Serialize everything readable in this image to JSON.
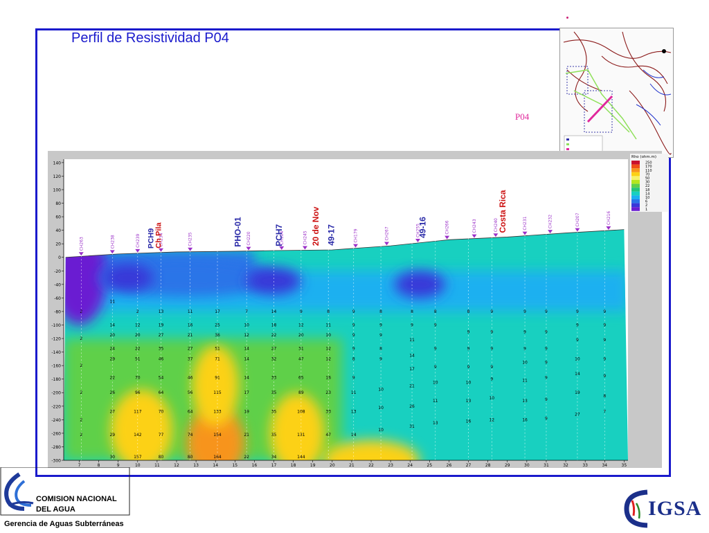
{
  "page": {
    "title": "Perfil de Resistividad P04",
    "profile_label": "P04",
    "institution": {
      "line1": "COMISION NACIONAL",
      "line2": "DEL  AGUA",
      "subtitle": "Gerencia de Aguas Subterráneas"
    },
    "cigsa_logo_text": "IGSA"
  },
  "colors": {
    "frame": "#1a1acc",
    "title": "#1a1acc",
    "profile_label": "#e0279b",
    "station_marker": "#9b30c8",
    "annotation_blue": "#2a2aa8",
    "annotation_red": "#cc1111"
  },
  "chart_data": {
    "type": "heatmap",
    "description": "Resistivity cross-section (isoline contour) along profile P04",
    "x_ticks": [
      7,
      8,
      9,
      10,
      11,
      12,
      13,
      14,
      15,
      16,
      17,
      18,
      19,
      20,
      21,
      22,
      23,
      24,
      25,
      26,
      27,
      28,
      29,
      30,
      31,
      32,
      33,
      34,
      35
    ],
    "y_ticks": [
      140,
      120,
      100,
      80,
      60,
      40,
      20,
      0,
      -20,
      -40,
      -60,
      -80,
      -100,
      -120,
      -140,
      -160,
      -180,
      -200,
      -220,
      -240,
      -260,
      -280,
      -300
    ],
    "xlim": [
      6.2,
      35.2
    ],
    "ylim": [
      -300,
      145
    ],
    "legend": {
      "title": "Rho (ohm.m)",
      "placement": "top-right",
      "levels": [
        {
          "value": "250",
          "color": "#c8102e"
        },
        {
          "value": "170",
          "color": "#f04f18"
        },
        {
          "value": "110",
          "color": "#f7941d"
        },
        {
          "value": "70",
          "color": "#fcd116"
        },
        {
          "value": "50",
          "color": "#f6f26b"
        },
        {
          "value": "30",
          "color": "#b5e61d"
        },
        {
          "value": "22",
          "color": "#5ed04a"
        },
        {
          "value": "18",
          "color": "#22c47a"
        },
        {
          "value": "14",
          "color": "#18d0c0"
        },
        {
          "value": "10",
          "color": "#1cb0f0"
        },
        {
          "value": "6",
          "color": "#2a74e8"
        },
        {
          "value": "2",
          "color": "#3838d8"
        },
        {
          "value": "1",
          "color": "#6a1fd2"
        }
      ]
    },
    "surface": [
      {
        "x": 6.3,
        "y": 0
      },
      {
        "x": 9,
        "y": 5
      },
      {
        "x": 12,
        "y": 8
      },
      {
        "x": 15,
        "y": 9
      },
      {
        "x": 17,
        "y": 10
      },
      {
        "x": 20,
        "y": 11
      },
      {
        "x": 23,
        "y": 17
      },
      {
        "x": 26,
        "y": 26
      },
      {
        "x": 29,
        "y": 30
      },
      {
        "x": 32,
        "y": 36
      },
      {
        "x": 35,
        "y": 41
      }
    ],
    "zones": [
      {
        "cx": 7.0,
        "cy": -30,
        "rx": 1.4,
        "ry": 70,
        "color": "#6a1fd2"
      },
      {
        "cx": 14.0,
        "cy": -275,
        "rx": 1.5,
        "ry": 55,
        "color": "#f7941d"
      },
      {
        "cx": 10.2,
        "cy": -255,
        "rx": 1.6,
        "ry": 60,
        "color": "#fcd116"
      },
      {
        "cx": 18.2,
        "cy": -260,
        "rx": 1.4,
        "ry": 60,
        "color": "#fcd116"
      },
      {
        "cx": 14.0,
        "cy": -190,
        "rx": 1.2,
        "ry": 60,
        "color": "#fcd116"
      },
      {
        "cx": 22.0,
        "cy": -300,
        "rx": 2.5,
        "ry": 30,
        "color": "#fcd116"
      },
      {
        "cx": 12.5,
        "cy": -30,
        "rx": 4.5,
        "ry": 28,
        "color": "#2a74e8"
      },
      {
        "cx": 17.0,
        "cy": -35,
        "rx": 1.4,
        "ry": 20,
        "color": "#3838d8"
      },
      {
        "cx": 24.5,
        "cy": -40,
        "rx": 1.3,
        "ry": 20,
        "color": "#3838d8"
      },
      {
        "cx": 9.5,
        "cy": -30,
        "rx": 1.3,
        "ry": 20,
        "color": "#3838d8"
      }
    ],
    "stations": [
      {
        "name": "CH263",
        "x": 7.1
      },
      {
        "name": "CH238",
        "x": 8.7
      },
      {
        "name": "CH239",
        "x": 10.0
      },
      {
        "name": "CH234",
        "x": 11.2
      },
      {
        "name": "CH235",
        "x": 12.7
      },
      {
        "name": "CH220",
        "x": 15.7
      },
      {
        "name": "CH104",
        "x": 17.4
      },
      {
        "name": "CH245",
        "x": 18.6
      },
      {
        "name": "CH179",
        "x": 21.2
      },
      {
        "name": "CH267",
        "x": 22.8
      },
      {
        "name": "CH255",
        "x": 24.4
      },
      {
        "name": "CH266",
        "x": 25.9
      },
      {
        "name": "CH243",
        "x": 27.3
      },
      {
        "name": "CH240",
        "x": 28.4
      },
      {
        "name": "CH231",
        "x": 29.9
      },
      {
        "name": "CH232",
        "x": 31.2
      },
      {
        "name": "CH207",
        "x": 32.6
      },
      {
        "name": "CH216",
        "x": 34.2
      }
    ],
    "annotations": [
      {
        "text": "PCH9",
        "x": 10.8,
        "color": "#2a2aa8",
        "size": 11
      },
      {
        "text": "Ch Pila",
        "x": 11.2,
        "color": "#cc1111",
        "size": 11
      },
      {
        "text": "PHO-01",
        "x": 15.3,
        "color": "#2a2aa8",
        "size": 12
      },
      {
        "text": "PCH7",
        "x": 17.4,
        "color": "#2a2aa8",
        "size": 12
      },
      {
        "text": "20 de Nov",
        "x": 19.3,
        "color": "#cc1111",
        "size": 12
      },
      {
        "text": "49-17",
        "x": 20.1,
        "color": "#2a2aa8",
        "size": 12
      },
      {
        "text": "49-16",
        "x": 24.8,
        "color": "#2a2aa8",
        "size": 12
      },
      {
        "text": "Costa Rica",
        "x": 28.9,
        "color": "#cc1111",
        "size": 12
      }
    ],
    "vertical_values": [
      {
        "x": 7.1,
        "values": [
          [
            -80,
            "2"
          ],
          [
            -120,
            "2"
          ],
          [
            -160,
            "2"
          ],
          [
            -200,
            "2"
          ],
          [
            -240,
            "2"
          ],
          [
            -262,
            "2"
          ]
        ]
      },
      {
        "x": 8.7,
        "values": [
          [
            -65,
            "11"
          ],
          [
            -100,
            "14"
          ],
          [
            -115,
            "20"
          ],
          [
            -135,
            "24"
          ],
          [
            -150,
            "29"
          ],
          [
            -178,
            "22"
          ],
          [
            -200,
            "26"
          ],
          [
            -228,
            "27"
          ],
          [
            -262,
            "29"
          ],
          [
            -295,
            "30"
          ]
        ]
      },
      {
        "x": 10.0,
        "values": [
          [
            -80,
            "2"
          ],
          [
            -100,
            "12"
          ],
          [
            -115,
            "20"
          ],
          [
            -135,
            "22"
          ],
          [
            -150,
            "51"
          ],
          [
            -178,
            "70"
          ],
          [
            -200,
            "96"
          ],
          [
            -228,
            "117"
          ],
          [
            -262,
            "142"
          ],
          [
            -295,
            "157"
          ]
        ]
      },
      {
        "x": 11.2,
        "values": [
          [
            -80,
            "13"
          ],
          [
            -100,
            "19"
          ],
          [
            -115,
            "27"
          ],
          [
            -135,
            "35"
          ],
          [
            -150,
            "46"
          ],
          [
            -178,
            "54"
          ],
          [
            -200,
            "64"
          ],
          [
            -228,
            "70"
          ],
          [
            -262,
            "77"
          ],
          [
            -295,
            "80"
          ]
        ]
      },
      {
        "x": 12.7,
        "values": [
          [
            -80,
            "11"
          ],
          [
            -100,
            "16"
          ],
          [
            -115,
            "21"
          ],
          [
            -135,
            "27"
          ],
          [
            -150,
            "37"
          ],
          [
            -178,
            "46"
          ],
          [
            -200,
            "56"
          ],
          [
            -228,
            "64"
          ],
          [
            -262,
            "74"
          ],
          [
            -295,
            "80"
          ]
        ]
      },
      {
        "x": 14.1,
        "values": [
          [
            -80,
            "17"
          ],
          [
            -100,
            "25"
          ],
          [
            -115,
            "36"
          ],
          [
            -135,
            "51"
          ],
          [
            -150,
            "71"
          ],
          [
            -178,
            "91"
          ],
          [
            -200,
            "115"
          ],
          [
            -228,
            "133"
          ],
          [
            -262,
            "154"
          ],
          [
            -295,
            "164"
          ]
        ]
      },
      {
        "x": 15.6,
        "values": [
          [
            -80,
            "7"
          ],
          [
            -100,
            "10"
          ],
          [
            -115,
            "12"
          ],
          [
            -135,
            "14"
          ],
          [
            -150,
            "14"
          ],
          [
            -178,
            "14"
          ],
          [
            -200,
            "17"
          ],
          [
            -228,
            "19"
          ],
          [
            -262,
            "21"
          ],
          [
            -295,
            "22"
          ]
        ]
      },
      {
        "x": 17.0,
        "values": [
          [
            -80,
            "14"
          ],
          [
            -100,
            "18"
          ],
          [
            -115,
            "22"
          ],
          [
            -135,
            "27"
          ],
          [
            -150,
            "32"
          ],
          [
            -178,
            "33"
          ],
          [
            -200,
            "35"
          ],
          [
            -228,
            "35"
          ],
          [
            -262,
            "35"
          ],
          [
            -295,
            "34"
          ]
        ]
      },
      {
        "x": 18.4,
        "values": [
          [
            -80,
            "9"
          ],
          [
            -100,
            "12"
          ],
          [
            -115,
            "20"
          ],
          [
            -135,
            "31"
          ],
          [
            -150,
            "47"
          ],
          [
            -178,
            "65"
          ],
          [
            -200,
            "89"
          ],
          [
            -228,
            "108"
          ],
          [
            -262,
            "131"
          ],
          [
            -295,
            "144"
          ]
        ]
      },
      {
        "x": 19.8,
        "values": [
          [
            -80,
            "8"
          ],
          [
            -100,
            "11"
          ],
          [
            -115,
            "10"
          ],
          [
            -135,
            "12"
          ],
          [
            -150,
            "12"
          ],
          [
            -178,
            "16"
          ],
          [
            -200,
            "23"
          ],
          [
            -228,
            "33"
          ],
          [
            -262,
            "47"
          ]
        ]
      },
      {
        "x": 21.1,
        "values": [
          [
            -80,
            "9"
          ],
          [
            -100,
            "9"
          ],
          [
            -115,
            "9"
          ],
          [
            -135,
            "9"
          ],
          [
            -150,
            "8"
          ],
          [
            -178,
            "9"
          ],
          [
            -200,
            "11"
          ],
          [
            -228,
            "13"
          ],
          [
            -262,
            "14"
          ]
        ]
      },
      {
        "x": 22.5,
        "values": [
          [
            -80,
            "8"
          ],
          [
            -100,
            "9"
          ],
          [
            -115,
            "9"
          ],
          [
            -135,
            "8"
          ],
          [
            -150,
            "9"
          ],
          [
            -195,
            "10"
          ],
          [
            -222,
            "10"
          ],
          [
            -255,
            "10"
          ]
        ]
      },
      {
        "x": 24.1,
        "values": [
          [
            -80,
            "8"
          ],
          [
            -100,
            "9"
          ],
          [
            -122,
            "11"
          ],
          [
            -145,
            "14"
          ],
          [
            -165,
            "17"
          ],
          [
            -190,
            "21"
          ],
          [
            -220,
            "26"
          ],
          [
            -250,
            "31"
          ]
        ]
      },
      {
        "x": 25.3,
        "values": [
          [
            -80,
            "8"
          ],
          [
            -100,
            "9"
          ],
          [
            -135,
            "9"
          ],
          [
            -162,
            "9"
          ],
          [
            -185,
            "10"
          ],
          [
            -212,
            "11"
          ],
          [
            -245,
            "13"
          ]
        ]
      },
      {
        "x": 27.0,
        "values": [
          [
            -80,
            "8"
          ],
          [
            -110,
            "9"
          ],
          [
            -135,
            "9"
          ],
          [
            -162,
            "9"
          ],
          [
            -185,
            "10"
          ],
          [
            -212,
            "13"
          ],
          [
            -242,
            "16"
          ]
        ]
      },
      {
        "x": 28.2,
        "values": [
          [
            -80,
            "9"
          ],
          [
            -110,
            "9"
          ],
          [
            -135,
            "9"
          ],
          [
            -162,
            "9"
          ],
          [
            -180,
            "9"
          ],
          [
            -208,
            "10"
          ],
          [
            -240,
            "12"
          ]
        ]
      },
      {
        "x": 29.9,
        "values": [
          [
            -80,
            "9"
          ],
          [
            -110,
            "9"
          ],
          [
            -135,
            "9"
          ],
          [
            -155,
            "10"
          ],
          [
            -182,
            "11"
          ],
          [
            -212,
            "13"
          ],
          [
            -240,
            "16"
          ]
        ]
      },
      {
        "x": 31.0,
        "values": [
          [
            -80,
            "9"
          ],
          [
            -110,
            "9"
          ],
          [
            -135,
            "9"
          ],
          [
            -155,
            "9"
          ],
          [
            -178,
            "9"
          ],
          [
            -210,
            "9"
          ],
          [
            -238,
            "9"
          ]
        ]
      },
      {
        "x": 32.6,
        "values": [
          [
            -80,
            "9"
          ],
          [
            -100,
            "9"
          ],
          [
            -122,
            "9"
          ],
          [
            -150,
            "10"
          ],
          [
            -172,
            "14"
          ],
          [
            -200,
            "19"
          ],
          [
            -232,
            "27"
          ]
        ]
      },
      {
        "x": 34.0,
        "values": [
          [
            -80,
            "9"
          ],
          [
            -100,
            "9"
          ],
          [
            -122,
            "9"
          ],
          [
            -150,
            "9"
          ],
          [
            -175,
            "9"
          ],
          [
            -205,
            "8"
          ],
          [
            -228,
            "7"
          ]
        ]
      }
    ]
  }
}
